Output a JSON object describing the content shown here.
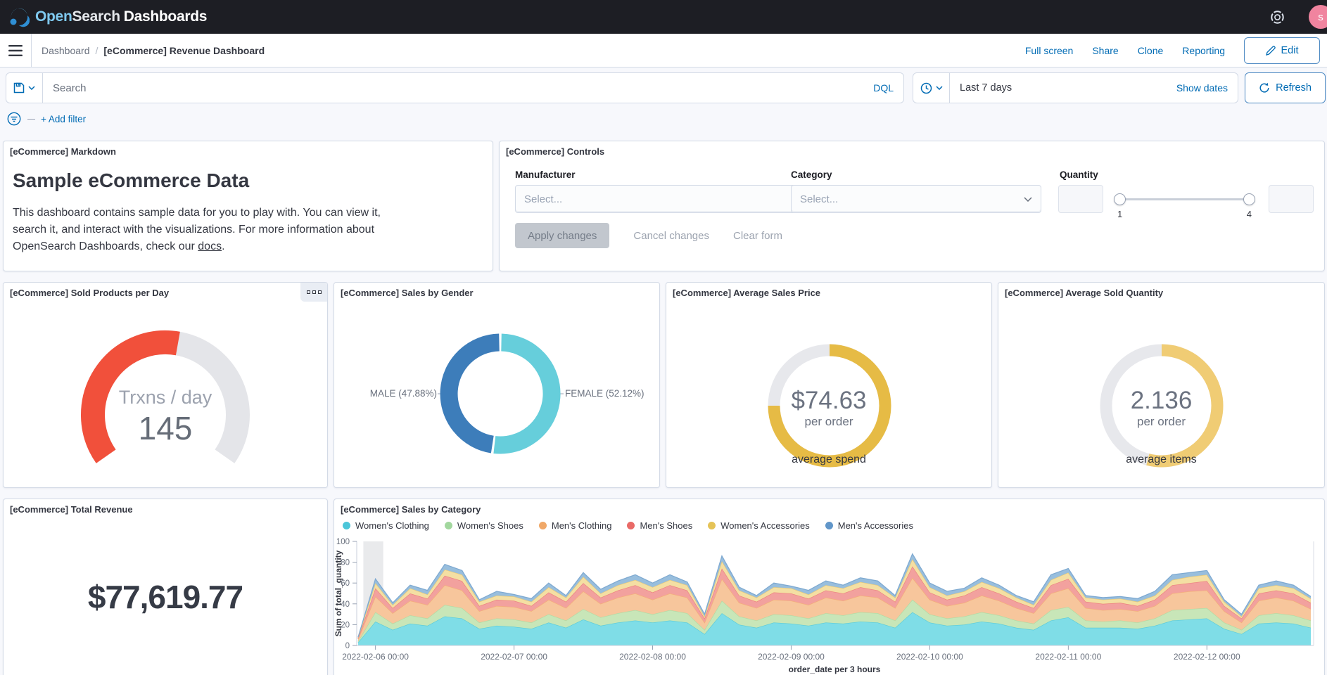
{
  "header": {
    "logo_open": "Open",
    "logo_search": "Search",
    "logo_dashboards": "Dashboards",
    "avatar_initial": "s"
  },
  "toolbar": {
    "breadcrumb_root": "Dashboard",
    "breadcrumb_sep": "/",
    "breadcrumb_current": "[eCommerce] Revenue Dashboard",
    "actions": [
      "Full screen",
      "Share",
      "Clone",
      "Reporting"
    ],
    "edit_label": "Edit"
  },
  "query_bar": {
    "search_placeholder": "Search",
    "dql_label": "DQL",
    "time_range": "Last 7 days",
    "show_dates_label": "Show dates",
    "refresh_label": "Refresh"
  },
  "filter_bar": {
    "add_filter_label": "+ Add filter"
  },
  "panels": {
    "markdown": {
      "title": "[eCommerce] Markdown",
      "heading": "Sample eCommerce Data",
      "body_before_link": "This dashboard contains sample data for you to play with. You can view it, search it, and interact with the visualizations. For more information about OpenSearch Dashboards, check our ",
      "link_text": "docs",
      "body_after_link": "."
    },
    "controls": {
      "title": "[eCommerce] Controls",
      "manufacturer_label": "Manufacturer",
      "category_label": "Category",
      "quantity_label": "Quantity",
      "select_placeholder": "Select...",
      "slider_min": "1",
      "slider_max": "4",
      "apply_label": "Apply changes",
      "cancel_label": "Cancel changes",
      "clear_label": "Clear form"
    },
    "sold_products": {
      "title": "[eCommerce] Sold Products per Day"
    },
    "sales_by_gender": {
      "title": "[eCommerce] Sales by Gender"
    },
    "avg_price": {
      "title": "[eCommerce] Average Sales Price"
    },
    "avg_qty": {
      "title": "[eCommerce] Average Sold Quantity"
    },
    "total_revenue": {
      "title": "[eCommerce] Total Revenue"
    },
    "sales_by_category": {
      "title": "[eCommerce] Sales by Category"
    }
  },
  "chart_data": [
    {
      "id": "sold_products_gauge",
      "type": "gauge",
      "title": "[eCommerce] Sold Products per Day",
      "label": "Trxns / day",
      "value": "145",
      "percent": 54,
      "span_deg": 250,
      "color": "#F1503B",
      "track_color": "#E4E5E9"
    },
    {
      "id": "sales_by_gender_pie",
      "type": "pie",
      "title": "[eCommerce] Sales by Gender",
      "slices": [
        {
          "label": "FEMALE (52.12%)",
          "value": 52.12,
          "color": "#66CEDB"
        },
        {
          "label": "MALE (47.88%)",
          "value": 47.88,
          "color": "#3D7DBA"
        }
      ]
    },
    {
      "id": "avg_price_ring",
      "type": "gauge",
      "title": "[eCommerce] Average Sales Price",
      "value": "$74.63",
      "sub": "per order",
      "caption": "average spend",
      "percent": 75,
      "color": "#E6BB45",
      "track_color": "#E7E8EC"
    },
    {
      "id": "avg_qty_ring",
      "type": "gauge",
      "title": "[eCommerce] Average Sold Quantity",
      "value": "2.136",
      "sub": "per order",
      "caption": "average items",
      "percent": 54,
      "color": "#F0CC74",
      "track_color": "#E7E8EC"
    },
    {
      "id": "total_revenue_metric",
      "type": "metric",
      "title": "[eCommerce] Total Revenue",
      "value": "$77,619.77"
    },
    {
      "id": "sales_by_category_area",
      "type": "area",
      "stacked": true,
      "title": "[eCommerce] Sales by Category",
      "xlabel": "order_date per 3 hours",
      "ylabel": "Sum of total_quantity",
      "ylim": [
        0,
        100
      ],
      "y_ticks": [
        0,
        20,
        40,
        60,
        80,
        100
      ],
      "grid": false,
      "legend_position": "top",
      "x_interval": "3h",
      "x_count": 56,
      "x_ticks": [
        {
          "i": 1,
          "label": "2022-02-06 00:00"
        },
        {
          "i": 9,
          "label": "2022-02-07 00:00"
        },
        {
          "i": 17,
          "label": "2022-02-08 00:00"
        },
        {
          "i": 25,
          "label": "2022-02-09 00:00"
        },
        {
          "i": 33,
          "label": "2022-02-10 00:00"
        },
        {
          "i": 41,
          "label": "2022-02-11 00:00"
        },
        {
          "i": 49,
          "label": "2022-02-12 00:00"
        }
      ],
      "band_range": [
        0.3,
        1.45
      ],
      "series": [
        {
          "name": "Women's Clothing",
          "dot": "#4CC6D9",
          "fill": "#7FDDE7",
          "line": "#59CBD9",
          "values": [
            3,
            23,
            15,
            21,
            19,
            28,
            26,
            16,
            19,
            18,
            16,
            22,
            17,
            25,
            19,
            22,
            24,
            22,
            24,
            22,
            11,
            31,
            20,
            17,
            22,
            21,
            19,
            22,
            21,
            23,
            22,
            17,
            32,
            22,
            19,
            20,
            23,
            21,
            17,
            15,
            24,
            27,
            17,
            17,
            17,
            16,
            19,
            24,
            25,
            26,
            16,
            11,
            21,
            22,
            21,
            17
          ]
        },
        {
          "name": "Women's Shoes",
          "dot": "#A2D79E",
          "fill": "#C8E6B8",
          "line": "#AFDBA4",
          "values": [
            1,
            9,
            6,
            8,
            7,
            11,
            10,
            6,
            7,
            7,
            6,
            8,
            7,
            10,
            8,
            9,
            10,
            8,
            10,
            9,
            4,
            12,
            8,
            7,
            8,
            8,
            7,
            9,
            8,
            9,
            9,
            7,
            12,
            8,
            7,
            8,
            9,
            8,
            7,
            6,
            10,
            10,
            7,
            6,
            7,
            6,
            7,
            10,
            10,
            10,
            6,
            4,
            8,
            9,
            8,
            7
          ]
        },
        {
          "name": "Men's Clothing",
          "dot": "#F0A868",
          "fill": "#F7C69C",
          "line": "#F3AF77",
          "values": [
            2,
            15,
            10,
            14,
            13,
            19,
            17,
            11,
            12,
            12,
            11,
            14,
            12,
            17,
            13,
            15,
            16,
            14,
            16,
            15,
            7,
            21,
            13,
            12,
            14,
            14,
            13,
            15,
            14,
            16,
            15,
            12,
            21,
            14,
            12,
            13,
            16,
            14,
            12,
            10,
            16,
            18,
            12,
            11,
            11,
            11,
            12,
            16,
            17,
            17,
            11,
            7,
            14,
            15,
            14,
            11
          ]
        },
        {
          "name": "Men's Shoes",
          "dot": "#E96A67",
          "fill": "#F2A19E",
          "line": "#EC817E",
          "values": [
            1,
            8,
            5,
            7,
            6,
            9,
            9,
            5,
            6,
            6,
            5,
            7,
            6,
            8,
            6,
            7,
            8,
            7,
            8,
            7,
            4,
            10,
            7,
            6,
            7,
            7,
            6,
            7,
            7,
            8,
            7,
            6,
            11,
            7,
            6,
            7,
            8,
            7,
            6,
            5,
            8,
            9,
            6,
            6,
            6,
            5,
            6,
            8,
            8,
            9,
            5,
            4,
            7,
            7,
            7,
            6
          ]
        },
        {
          "name": "Women's Accessories",
          "dot": "#E5C357",
          "fill": "#F4DFA3",
          "line": "#EACA74",
          "values": [
            1,
            5,
            3,
            5,
            4,
            6,
            6,
            4,
            4,
            4,
            4,
            5,
            4,
            6,
            4,
            5,
            5,
            5,
            5,
            5,
            2,
            7,
            5,
            4,
            5,
            5,
            4,
            5,
            5,
            5,
            5,
            4,
            7,
            5,
            4,
            4,
            5,
            5,
            4,
            3,
            5,
            6,
            4,
            4,
            4,
            4,
            4,
            5,
            6,
            6,
            4,
            2,
            5,
            5,
            5,
            4
          ]
        },
        {
          "name": "Men's Accessories",
          "dot": "#6196C9",
          "fill": "#98BEDD",
          "line": "#7FAAD1",
          "values": [
            0,
            4,
            2,
            3,
            4,
            5,
            4,
            2,
            4,
            2,
            3,
            4,
            2,
            4,
            4,
            4,
            5,
            4,
            5,
            3,
            2,
            5,
            3,
            2,
            4,
            2,
            4,
            4,
            3,
            4,
            4,
            2,
            5,
            4,
            4,
            3,
            4,
            3,
            2,
            3,
            5,
            4,
            2,
            2,
            2,
            3,
            4,
            5,
            4,
            4,
            2,
            2,
            3,
            4,
            3,
            2
          ]
        }
      ]
    }
  ]
}
